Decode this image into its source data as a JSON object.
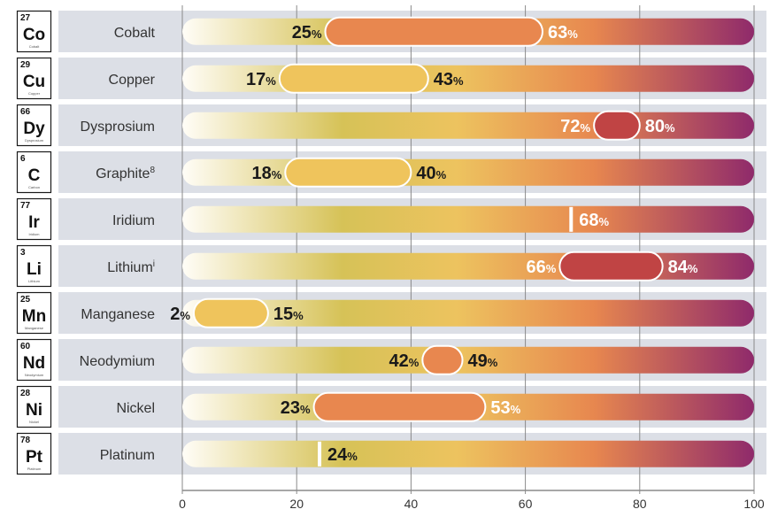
{
  "chart_data": {
    "type": "bar",
    "xlim": [
      0,
      100
    ],
    "x_ticks": [
      0,
      20,
      40,
      60,
      80,
      100
    ],
    "grid": true,
    "colors": {
      "row_background": "#dcdfe6",
      "track_stops": [
        "#fffdf7",
        "#d6c257",
        "#edc35f",
        "#e7874f",
        "#8f2a6b"
      ],
      "range_low": "#efc45c",
      "range_mid": "#e8874f",
      "range_high": "#c04444",
      "tick_marker": "#ffffff",
      "axis": "#8a8a8a"
    },
    "rows": [
      {
        "number": "27",
        "symbol": "Co",
        "element_name": "Cobalt",
        "label": "Cobalt",
        "sup": "",
        "low": 25,
        "high": 63,
        "low_text": "25",
        "high_text": "63",
        "range_color": "range_mid",
        "low_color": "#1a1a1a",
        "high_color": "#ffffff"
      },
      {
        "number": "29",
        "symbol": "Cu",
        "element_name": "Copper",
        "label": "Copper",
        "sup": "",
        "low": 17,
        "high": 43,
        "low_text": "17",
        "high_text": "43",
        "range_color": "range_low",
        "low_color": "#1a1a1a",
        "high_color": "#1a1a1a"
      },
      {
        "number": "66",
        "symbol": "Dy",
        "element_name": "Dysprosium",
        "label": "Dysprosium",
        "sup": "",
        "low": 72,
        "high": 80,
        "low_text": "72",
        "high_text": "80",
        "range_color": "range_high",
        "low_color": "#ffffff",
        "high_color": "#ffffff"
      },
      {
        "number": "6",
        "symbol": "C",
        "element_name": "Carbon",
        "label": "Graphite",
        "sup": "8",
        "low": 18,
        "high": 40,
        "low_text": "18",
        "high_text": "40",
        "range_color": "range_low",
        "low_color": "#1a1a1a",
        "high_color": "#1a1a1a"
      },
      {
        "number": "77",
        "symbol": "Ir",
        "element_name": "Iridium",
        "label": "Iridium",
        "sup": "",
        "low": 68,
        "high": 68,
        "low_text": "",
        "high_text": "68",
        "range_color": "tick_marker",
        "low_color": "#ffffff",
        "high_color": "#ffffff"
      },
      {
        "number": "3",
        "symbol": "Li",
        "element_name": "Lithium",
        "label": "Lithium",
        "sup": "i",
        "low": 66,
        "high": 84,
        "low_text": "66",
        "high_text": "84",
        "range_color": "range_high",
        "low_color": "#ffffff",
        "high_color": "#ffffff"
      },
      {
        "number": "25",
        "symbol": "Mn",
        "element_name": "Manganese",
        "label": "Manganese",
        "sup": "",
        "low": 2,
        "high": 15,
        "low_text": "2",
        "high_text": "15",
        "range_color": "range_low",
        "low_color": "#1a1a1a",
        "high_color": "#1a1a1a"
      },
      {
        "number": "60",
        "symbol": "Nd",
        "element_name": "Neodymium",
        "label": "Neodymium",
        "sup": "",
        "low": 42,
        "high": 49,
        "low_text": "42",
        "high_text": "49",
        "range_color": "range_mid",
        "low_color": "#1a1a1a",
        "high_color": "#1a1a1a"
      },
      {
        "number": "28",
        "symbol": "Ni",
        "element_name": "Nickel",
        "label": "Nickel",
        "sup": "",
        "low": 23,
        "high": 53,
        "low_text": "23",
        "high_text": "53",
        "range_color": "range_mid",
        "low_color": "#1a1a1a",
        "high_color": "#ffffff"
      },
      {
        "number": "78",
        "symbol": "Pt",
        "element_name": "Platinum",
        "label": "Platinum",
        "sup": "",
        "low": 24,
        "high": 24,
        "low_text": "",
        "high_text": "24",
        "range_color": "tick_marker",
        "low_color": "#1a1a1a",
        "high_color": "#1a1a1a"
      }
    ]
  }
}
